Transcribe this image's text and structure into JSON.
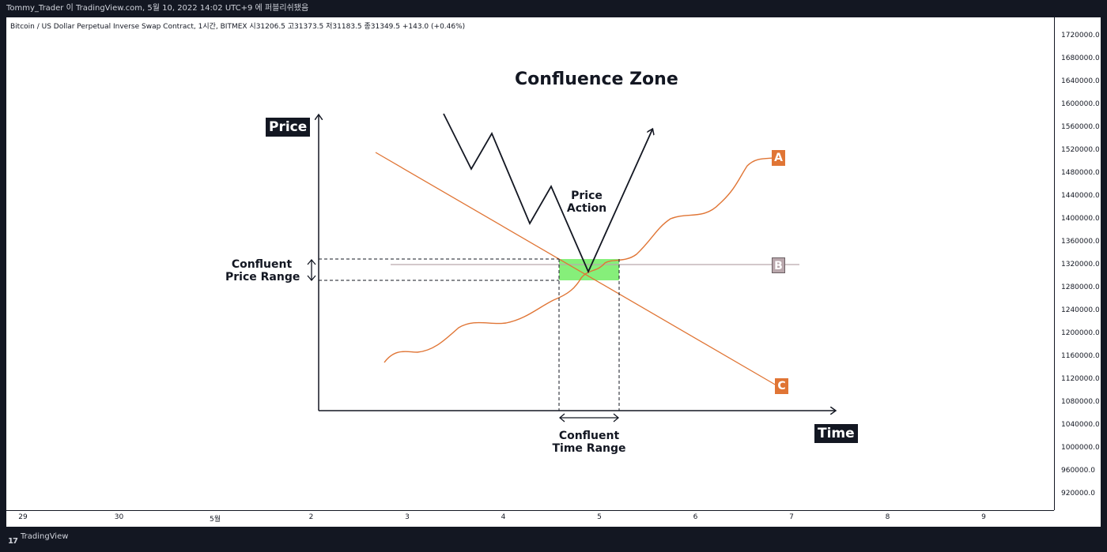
{
  "header": {
    "publisher_line": "Tommy_Trader 이 TradingView.com, 5월 10, 2022 14:02 UTC+9 에 퍼블리쉬됐음"
  },
  "symbol": {
    "line": "Bitcoin / US Dollar Perpetual Inverse Swap Contract, 1시간, BITMEX  시31206.5  고31373.5  저31183.5  종31349.5  +143.0 (+0.46%)"
  },
  "price_scale": {
    "ticks": [
      "1720000.0",
      "1680000.0",
      "1640000.0",
      "1600000.0",
      "1560000.0",
      "1520000.0",
      "1480000.0",
      "1440000.0",
      "1400000.0",
      "1360000.0",
      "1320000.0",
      "1280000.0",
      "1240000.0",
      "1200000.0",
      "1160000.0",
      "1120000.0",
      "1080000.0",
      "1040000.0",
      "1000000.0",
      "960000.0",
      "920000.0"
    ]
  },
  "time_axis": {
    "ticks": [
      "29",
      "30",
      "5월",
      "2",
      "3",
      "4",
      "5",
      "6",
      "7",
      "8",
      "9"
    ]
  },
  "footer": {
    "logo_glyph": "17",
    "brand": "TradingView"
  },
  "chart_data": {
    "type": "line",
    "title": "Confluence Zone",
    "ylabel": "Price",
    "xlabel": "Time",
    "annotations": {
      "price_action_line1": "Price",
      "price_action_line2": "Action",
      "confluent_price_line1": "Confluent",
      "confluent_price_line2": "Price Range",
      "confluent_time_line1": "Confluent",
      "confluent_time_line2": "Time Range"
    },
    "series": [
      {
        "name": "A",
        "color": "#e07535"
      },
      {
        "name": "B",
        "color": "#b9a7ac"
      },
      {
        "name": "C",
        "color": "#e07535"
      }
    ],
    "zone_color": "#86ef7a"
  }
}
